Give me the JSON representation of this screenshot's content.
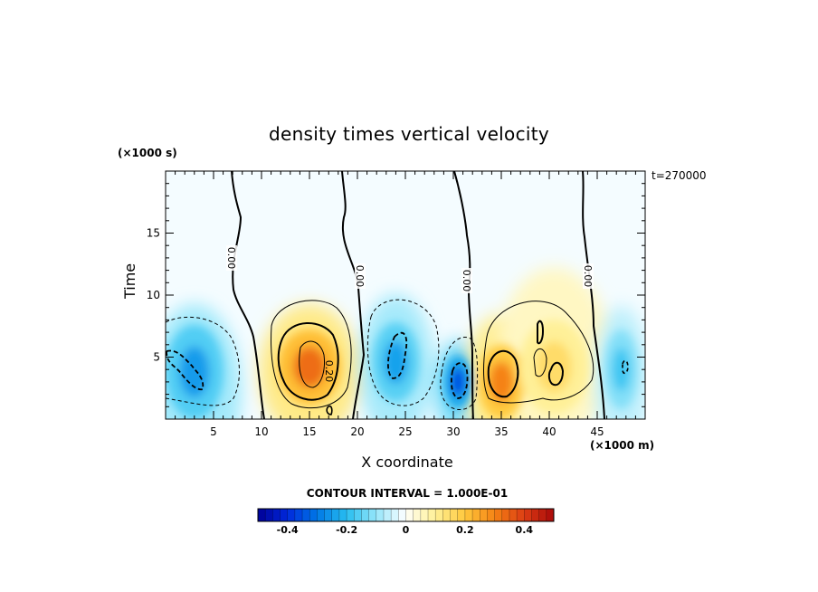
{
  "chart_data": {
    "type": "heatmap",
    "title": "density times vertical velocity",
    "xlabel": "X coordinate",
    "ylabel": "Time",
    "x_scale_note": "(×1000 m)",
    "y_scale_note": "(×1000 s)",
    "annotation": "t=270000",
    "contour_interval_text": "CONTOUR INTERVAL = 1.000E-01",
    "xlim": [
      0,
      50
    ],
    "ylim": [
      0,
      20
    ],
    "x_ticks": [
      "5",
      "10",
      "15",
      "20",
      "25",
      "30",
      "35",
      "40",
      "45"
    ],
    "y_ticks": [
      "5",
      "10",
      "15"
    ],
    "zero_contour_labels": [
      "0.00",
      "0.00",
      "0.00",
      "0.00"
    ],
    "contour_labels": [
      "0.20"
    ],
    "colorbar": {
      "range": [
        -0.5,
        0.5
      ],
      "tick_labels": [
        "-0.4",
        "-0.2",
        "0",
        "0.2",
        "0.4"
      ],
      "tick_values": [
        -0.4,
        -0.2,
        0,
        0.2,
        0.4
      ]
    },
    "features": [
      {
        "x": 3,
        "y": 3.8,
        "value": -0.25
      },
      {
        "x": 15,
        "y": 4.2,
        "value": 0.33
      },
      {
        "x": 24,
        "y": 4.6,
        "value": -0.24
      },
      {
        "x": 30.5,
        "y": 3.0,
        "value": -0.35
      },
      {
        "x": 35,
        "y": 3.0,
        "value": 0.3
      },
      {
        "x": 40.5,
        "y": 4.2,
        "value": 0.15
      },
      {
        "x": 47.5,
        "y": 4.0,
        "value": -0.18
      }
    ]
  }
}
